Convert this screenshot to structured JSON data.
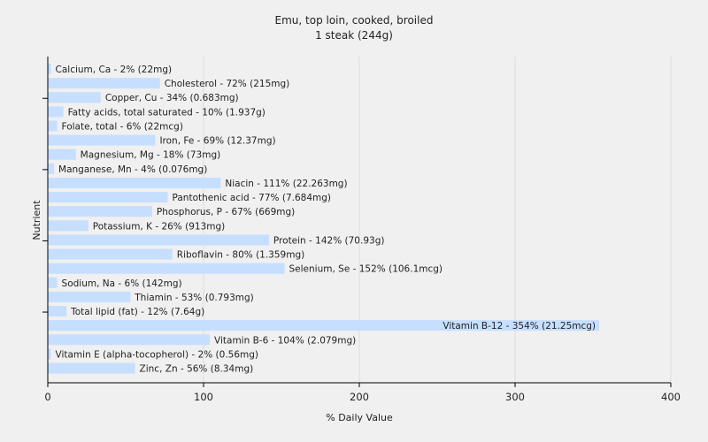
{
  "chart_data": {
    "type": "bar",
    "orientation": "horizontal",
    "title": "Emu, top loin, cooked, broiled",
    "subtitle": "1 steak (244g)",
    "xlabel": "% Daily Value",
    "ylabel": "Nutrient",
    "xlim": [
      0,
      400
    ],
    "xticks": [
      0,
      100,
      200,
      300,
      400
    ],
    "grid": "vertical",
    "bar_color": "#c6deff",
    "categories": [
      "Calcium, Ca",
      "Cholesterol",
      "Copper, Cu",
      "Fatty acids, total saturated",
      "Folate, total",
      "Iron, Fe",
      "Magnesium, Mg",
      "Manganese, Mn",
      "Niacin",
      "Pantothenic acid",
      "Phosphorus, P",
      "Potassium, K",
      "Protein",
      "Riboflavin",
      "Selenium, Se",
      "Sodium, Na",
      "Thiamin",
      "Total lipid (fat)",
      "Vitamin B-12",
      "Vitamin B-6",
      "Vitamin E (alpha-tocopherol)",
      "Zinc, Zn"
    ],
    "values": [
      2,
      72,
      34,
      10,
      6,
      69,
      18,
      4,
      111,
      77,
      67,
      26,
      142,
      80,
      152,
      6,
      53,
      12,
      354,
      104,
      2,
      56
    ],
    "labels": [
      "Calcium, Ca - 2% (22mg)",
      "Cholesterol - 72% (215mg)",
      "Copper, Cu - 34% (0.683mg)",
      "Fatty acids, total saturated - 10% (1.937g)",
      "Folate, total - 6% (22mcg)",
      "Iron, Fe - 69% (12.37mg)",
      "Magnesium, Mg - 18% (73mg)",
      "Manganese, Mn - 4% (0.076mg)",
      "Niacin - 111% (22.263mg)",
      "Pantothenic acid - 77% (7.684mg)",
      "Phosphorus, P - 67% (669mg)",
      "Potassium, K - 26% (913mg)",
      "Protein - 142% (70.93g)",
      "Riboflavin - 80% (1.359mg)",
      "Selenium, Se - 152% (106.1mcg)",
      "Sodium, Na - 6% (142mg)",
      "Thiamin - 53% (0.793mg)",
      "Total lipid (fat) - 12% (7.64g)",
      "Vitamin B-12 - 354% (21.25mcg)",
      "Vitamin B-6 - 104% (2.079mg)",
      "Vitamin E (alpha-tocopherol) - 2% (0.56mg)",
      "Zinc, Zn - 56% (8.34mg)"
    ]
  }
}
